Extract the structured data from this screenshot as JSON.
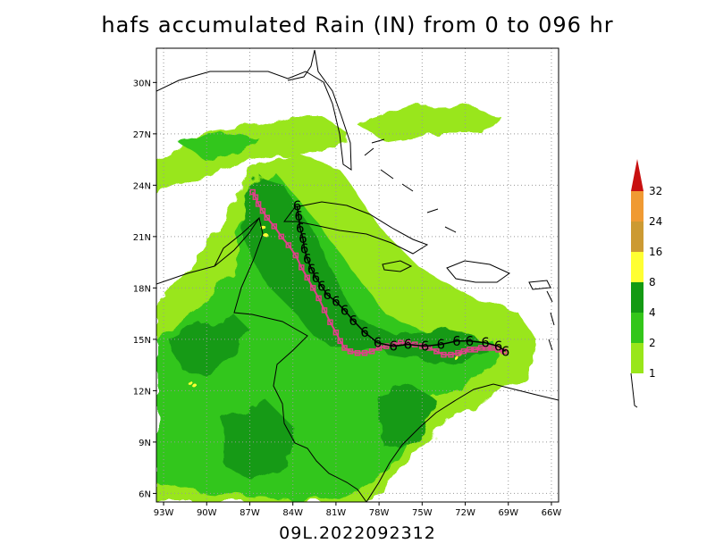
{
  "title": "hafs accumulated Rain (IN) from 0 to 096 hr",
  "subtitle": "09L.2022092312",
  "colors": {
    "c1": "#99e61a",
    "c2": "#33c61a",
    "c4": "#139a13",
    "c8": "#ffff33",
    "c16": "#cc9a33",
    "c24": "#f09a33",
    "c32": "#c81010",
    "forecast_track": "#000000",
    "observed_track": "#e0408a"
  },
  "map": {
    "lon_range": [
      -93.5,
      -65.5
    ],
    "lat_range": [
      5.5,
      32
    ],
    "lon_ticks": [
      "93W",
      "90W",
      "87W",
      "84W",
      "81W",
      "78W",
      "75W",
      "72W",
      "69W",
      "66W"
    ],
    "lat_ticks": [
      "6N",
      "9N",
      "12N",
      "15N",
      "18N",
      "21N",
      "24N",
      "27N",
      "30N"
    ]
  },
  "legend": {
    "labels": [
      "1",
      "2",
      "4",
      "8",
      "16",
      "24",
      "32"
    ]
  },
  "forecast_track": {
    "symbol": "6",
    "points": [
      [
        -83.7,
        22.8
      ],
      [
        -83.6,
        22.2
      ],
      [
        -83.5,
        21.5
      ],
      [
        -83.3,
        20.9
      ],
      [
        -83.2,
        20.3
      ],
      [
        -83.0,
        19.7
      ],
      [
        -82.7,
        19.1
      ],
      [
        -82.4,
        18.6
      ],
      [
        -82.0,
        18.1
      ],
      [
        -81.6,
        17.6
      ],
      [
        -81.0,
        17.2
      ],
      [
        -80.4,
        16.7
      ],
      [
        -79.8,
        16.1
      ],
      [
        -79.0,
        15.4
      ],
      [
        -78.1,
        14.8
      ],
      [
        -77.0,
        14.6
      ],
      [
        -76.0,
        14.7
      ],
      [
        -74.8,
        14.6
      ],
      [
        -73.7,
        14.7
      ],
      [
        -72.6,
        14.9
      ],
      [
        -71.7,
        14.9
      ],
      [
        -70.6,
        14.8
      ],
      [
        -69.7,
        14.6
      ],
      [
        -69.2,
        14.3
      ]
    ]
  },
  "observed_track": {
    "points": [
      [
        -69.3,
        14.3
      ],
      [
        -69.7,
        14.4
      ],
      [
        -70.1,
        14.5
      ],
      [
        -70.5,
        14.5
      ],
      [
        -70.9,
        14.5
      ],
      [
        -71.3,
        14.4
      ],
      [
        -71.7,
        14.4
      ],
      [
        -72.1,
        14.3
      ],
      [
        -72.5,
        14.2
      ],
      [
        -73.0,
        14.1
      ],
      [
        -73.5,
        14.1
      ],
      [
        -74.0,
        14.3
      ],
      [
        -74.5,
        14.5
      ],
      [
        -75.0,
        14.6
      ],
      [
        -75.5,
        14.7
      ],
      [
        -76.0,
        14.8
      ],
      [
        -76.5,
        14.8
      ],
      [
        -77.0,
        14.7
      ],
      [
        -77.5,
        14.6
      ],
      [
        -78.0,
        14.5
      ],
      [
        -78.5,
        14.3
      ],
      [
        -79.0,
        14.2
      ],
      [
        -79.5,
        14.2
      ],
      [
        -80.0,
        14.3
      ],
      [
        -80.4,
        14.5
      ],
      [
        -80.7,
        14.9
      ],
      [
        -81.0,
        15.4
      ],
      [
        -81.4,
        16.0
      ],
      [
        -81.8,
        16.7
      ],
      [
        -82.2,
        17.4
      ],
      [
        -82.6,
        18.0
      ],
      [
        -83.0,
        18.6
      ],
      [
        -83.4,
        19.2
      ],
      [
        -83.8,
        19.9
      ],
      [
        -84.3,
        20.5
      ],
      [
        -84.8,
        21.0
      ],
      [
        -85.3,
        21.6
      ],
      [
        -85.8,
        22.1
      ],
      [
        -86.1,
        22.5
      ],
      [
        -86.4,
        22.9
      ],
      [
        -86.6,
        23.3
      ],
      [
        -86.8,
        23.6
      ]
    ]
  }
}
